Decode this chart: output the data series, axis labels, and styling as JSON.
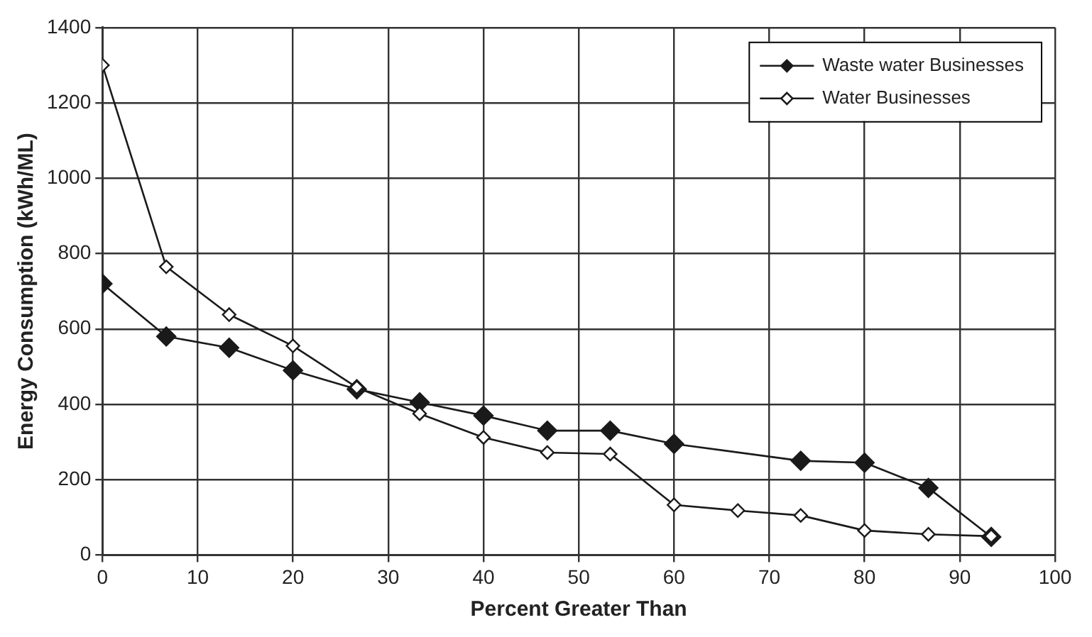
{
  "chart_data": {
    "type": "line",
    "xlabel": "Percent Greater Than",
    "ylabel": "Energy Consumption (kWh/ML)",
    "xlim": [
      0,
      100
    ],
    "xticks": [
      0,
      10,
      20,
      30,
      40,
      50,
      60,
      70,
      80,
      90,
      100
    ],
    "ylim": [
      0,
      1400
    ],
    "yticks": [
      0,
      200,
      400,
      600,
      800,
      1000,
      1200,
      1400
    ],
    "grid": true,
    "legend": "top right",
    "marker": "diamond",
    "line_style": "solid",
    "series": [
      {
        "name": "Waste water Businesses",
        "color": "#1a1a1a",
        "x": [
          0,
          6.7,
          13.3,
          20,
          26.7,
          33.3,
          40,
          46.7,
          53.3,
          60,
          73.3,
          80,
          86.7,
          93.3
        ],
        "values": [
          720,
          580,
          550,
          490,
          440,
          405,
          370,
          330,
          330,
          295,
          250,
          245,
          178,
          48
        ]
      },
      {
        "name": "Water Businesses",
        "color": "#1a1a1a",
        "x": [
          0,
          6.7,
          13.3,
          20,
          26.7,
          33.3,
          40,
          46.7,
          53.3,
          60,
          66.7,
          73.3,
          80,
          86.7,
          93.3
        ],
        "values": [
          1300,
          765,
          638,
          555,
          445,
          375,
          312,
          272,
          268,
          133,
          118,
          105,
          65,
          55,
          50
        ]
      }
    ]
  }
}
